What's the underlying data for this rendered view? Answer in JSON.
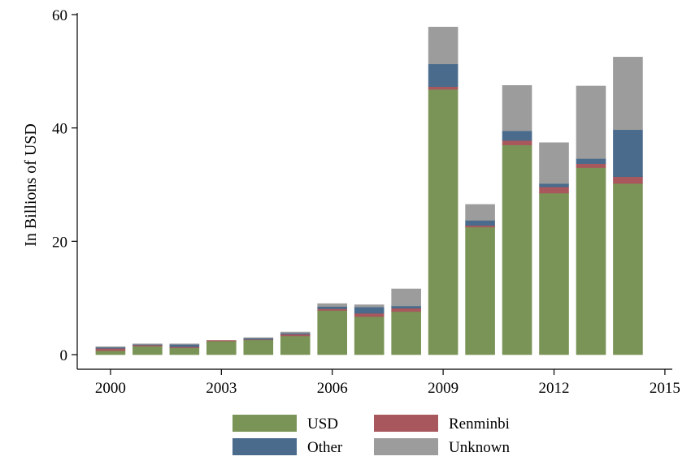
{
  "chart_data": {
    "type": "bar",
    "stacked": true,
    "ylabel": "In Billions of USD",
    "xlabel": "",
    "x": [
      2000,
      2001,
      2002,
      2003,
      2004,
      2005,
      2006,
      2007,
      2008,
      2009,
      2010,
      2011,
      2012,
      2013,
      2014
    ],
    "xticks": [
      2000,
      2003,
      2006,
      2009,
      2012,
      2015
    ],
    "xlim": [
      1999.1,
      2015.2
    ],
    "yticks": [
      0,
      20,
      40,
      60
    ],
    "ylim": [
      0,
      60
    ],
    "grid": false,
    "legend_position": "bottom",
    "series": [
      {
        "name": "USD",
        "color": "#7a9457",
        "values": [
          0.7,
          1.5,
          1.2,
          2.4,
          2.6,
          3.3,
          7.8,
          6.7,
          7.6,
          46.8,
          22.5,
          37.0,
          28.5,
          33.0,
          30.2
        ]
      },
      {
        "name": "Renminbi",
        "color": "#a8585d",
        "values": [
          0.4,
          0.2,
          0.2,
          0.1,
          0.1,
          0.3,
          0.3,
          0.6,
          0.6,
          0.5,
          0.3,
          0.8,
          1.1,
          0.7,
          1.2
        ]
      },
      {
        "name": "Other",
        "color": "#4a6b8c",
        "values": [
          0.2,
          0.1,
          0.4,
          0.0,
          0.2,
          0.2,
          0.4,
          1.1,
          0.4,
          4.0,
          0.9,
          1.7,
          0.6,
          0.9,
          8.3
        ]
      },
      {
        "name": "Unknown",
        "color": "#9c9c9c",
        "values": [
          0.1,
          0.1,
          0.1,
          0.0,
          0.1,
          0.2,
          0.5,
          0.4,
          3.0,
          6.5,
          2.8,
          8.0,
          7.2,
          12.8,
          12.8
        ]
      }
    ]
  }
}
